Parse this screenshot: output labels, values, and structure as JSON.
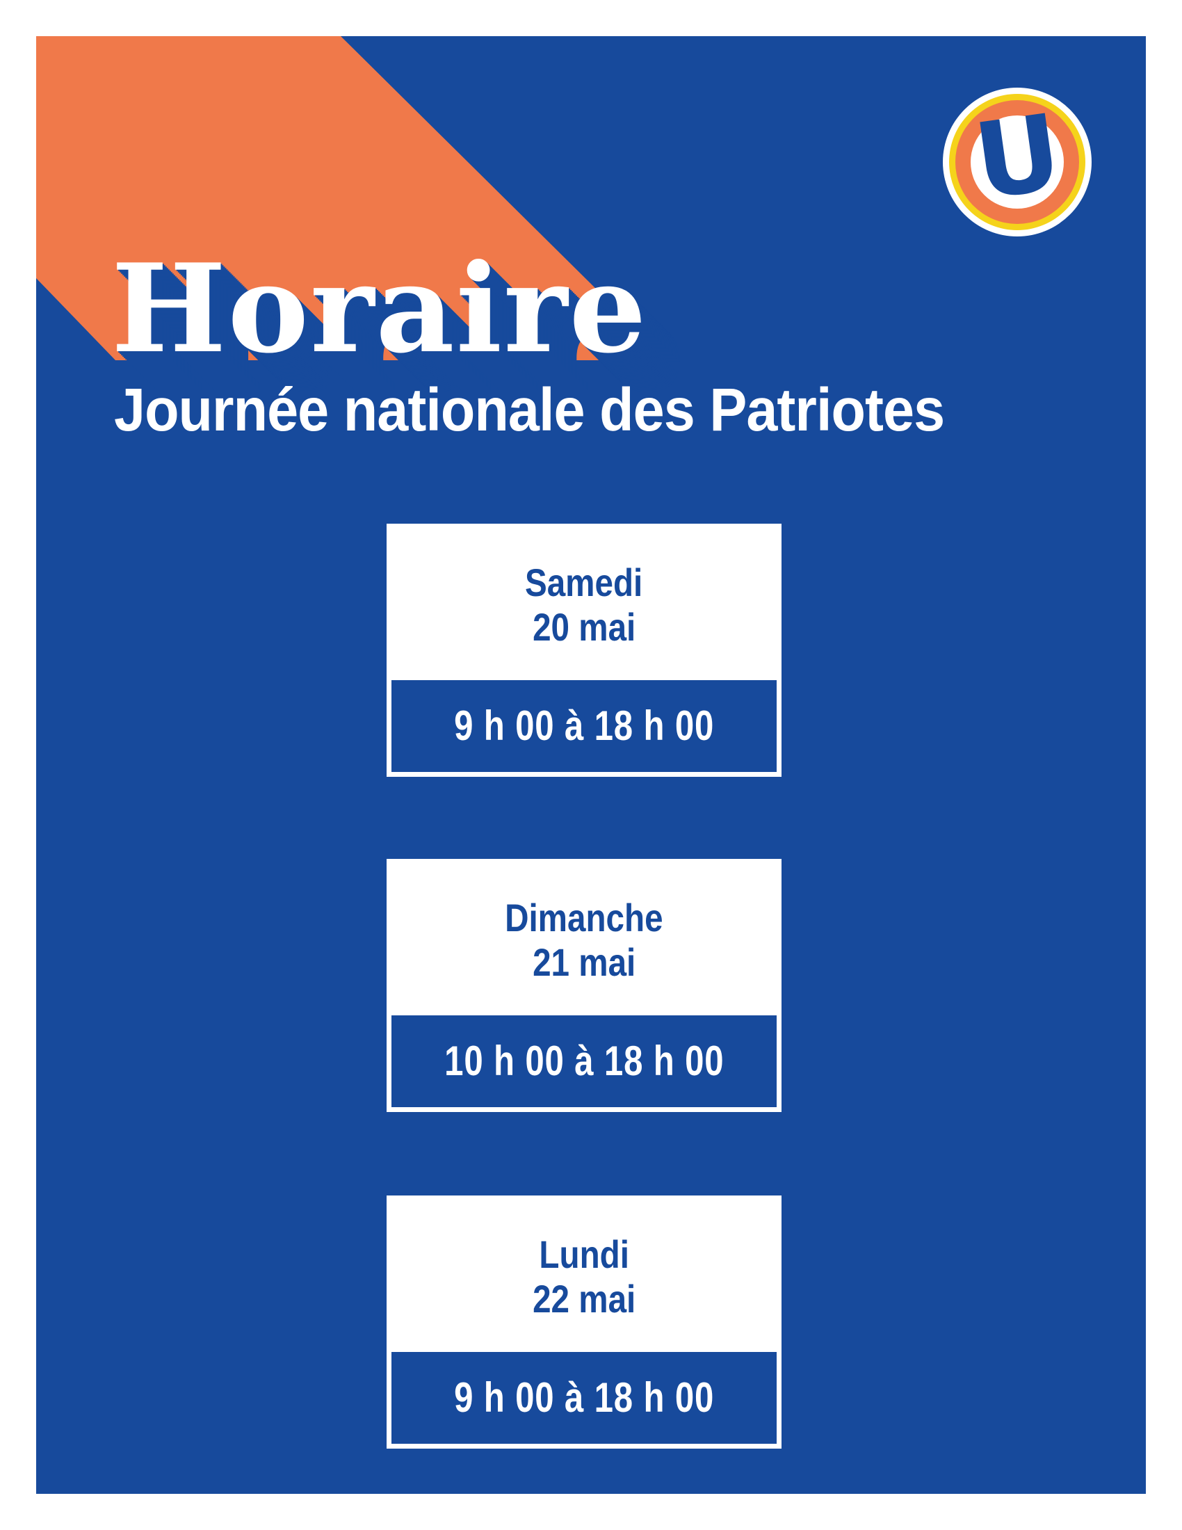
{
  "poster": {
    "title": "Horaire",
    "subtitle": "Journée nationale des Patriotes",
    "logo": {
      "letter": "U"
    },
    "colors": {
      "background_blue": "#174A9C",
      "ribbon_orange": "#F0794A",
      "logo_yellow": "#F5D31B",
      "frame_white": "#FFFFFF"
    },
    "schedule": [
      {
        "day": "Samedi",
        "date": "20 mai",
        "hours": "9 h 00 à 18 h 00"
      },
      {
        "day": "Dimanche",
        "date": "21 mai",
        "hours": "10 h 00 à 18 h 00"
      },
      {
        "day": "Lundi",
        "date": "22 mai",
        "hours": "9 h 00 à 18 h 00"
      }
    ]
  }
}
